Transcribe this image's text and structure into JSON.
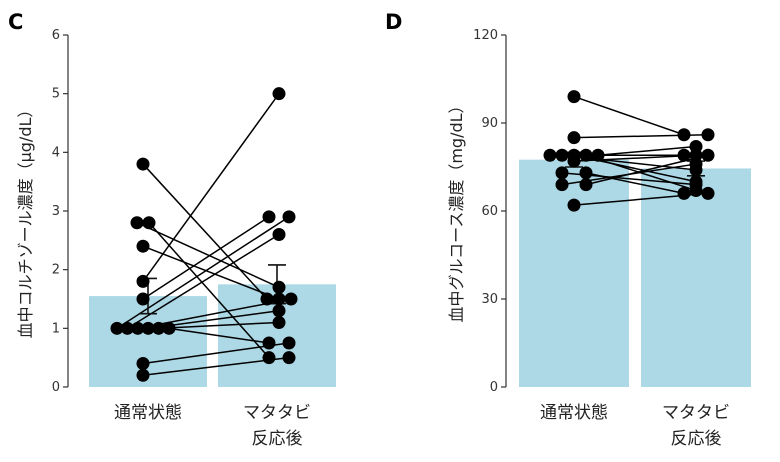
{
  "chart_data": [
    {
      "panel_label": "C",
      "type": "bar",
      "ylabel": "血中コルチゾール濃度（μg/dL）",
      "ylim": [
        0,
        6
      ],
      "yticks": [
        "0",
        "1",
        "2",
        "3",
        "4",
        "5",
        "6"
      ],
      "categories": [
        {
          "line1": "通常状態",
          "line2": ""
        },
        {
          "line1": "マタタビ",
          "line2": "反応後"
        }
      ],
      "bar_color": "#ADD8E6",
      "means": [
        1.55,
        1.75
      ],
      "errors": [
        0.3,
        0.33
      ],
      "pairs": [
        [
          3.8,
          1.5
        ],
        [
          2.8,
          1.7
        ],
        [
          2.8,
          0.5
        ],
        [
          2.4,
          1.5
        ],
        [
          1.8,
          5.0
        ],
        [
          1.5,
          2.9
        ],
        [
          1.0,
          2.9
        ],
        [
          1.0,
          2.6
        ],
        [
          1.0,
          1.5
        ],
        [
          1.0,
          1.3
        ],
        [
          1.0,
          1.1
        ],
        [
          1.0,
          0.75
        ],
        [
          0.4,
          0.75
        ],
        [
          0.2,
          0.5
        ]
      ]
    },
    {
      "panel_label": "D",
      "type": "bar",
      "ylabel": "血中グルコース濃度（mg/dL）",
      "ylim": [
        0,
        120
      ],
      "yticks": [
        "0",
        "30",
        "60",
        "90",
        "120"
      ],
      "categories": [
        {
          "line1": "通常状態",
          "line2": ""
        },
        {
          "line1": "マタタビ",
          "line2": "反応後"
        }
      ],
      "bar_color": "#ADD8E6",
      "means": [
        77.5,
        74.5
      ],
      "errors": [
        2.5,
        2.5
      ],
      "pairs": [
        [
          99,
          86
        ],
        [
          85,
          86
        ],
        [
          79,
          79
        ],
        [
          79,
          74
        ],
        [
          79,
          70
        ],
        [
          79,
          67
        ],
        [
          79,
          82
        ],
        [
          77,
          79
        ],
        [
          73,
          69
        ],
        [
          73,
          66
        ],
        [
          69,
          76
        ],
        [
          69,
          79
        ],
        [
          62,
          66
        ]
      ]
    }
  ]
}
